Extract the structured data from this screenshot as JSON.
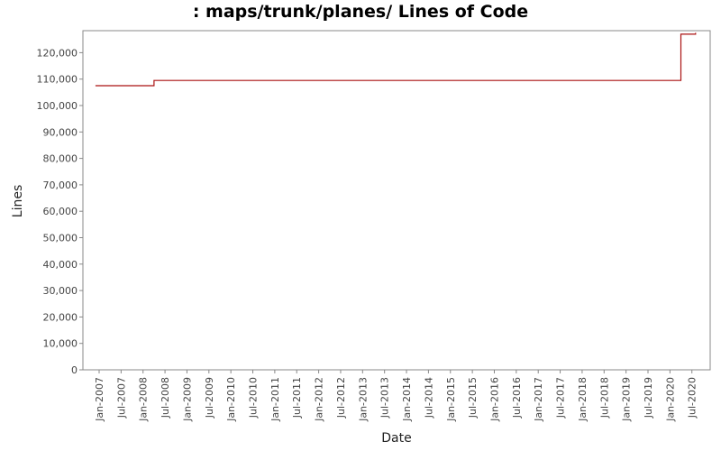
{
  "chart_data": {
    "type": "line",
    "title": ": maps/trunk/planes/ Lines of Code",
    "xlabel": "Date",
    "ylabel": "Lines",
    "ylim": [
      0,
      128000
    ],
    "y_ticks": [
      0,
      10000,
      20000,
      30000,
      40000,
      50000,
      60000,
      70000,
      80000,
      90000,
      100000,
      110000,
      120000
    ],
    "y_tick_labels": [
      "0",
      "10,000",
      "20,000",
      "30,000",
      "40,000",
      "50,000",
      "60,000",
      "70,000",
      "80,000",
      "90,000",
      "100,000",
      "110,000",
      "120,000"
    ],
    "x_tick_labels": [
      "Jan-2007",
      "Jul-2007",
      "Jan-2008",
      "Jul-2008",
      "Jan-2009",
      "Jul-2009",
      "Jan-2010",
      "Jul-2010",
      "Jan-2011",
      "Jul-2011",
      "Jan-2012",
      "Jul-2012",
      "Jan-2013",
      "Jul-2013",
      "Jan-2014",
      "Jul-2014",
      "Jan-2015",
      "Jul-2015",
      "Jan-2016",
      "Jul-2016",
      "Jan-2017",
      "Jul-2017",
      "Jan-2018",
      "Jul-2018",
      "Jan-2019",
      "Jul-2019",
      "Jan-2020",
      "Jul-2020"
    ],
    "step": true,
    "grid": false,
    "series": [
      {
        "color": "#aa1111",
        "points": [
          {
            "x": "2006-12",
            "y": 107500
          },
          {
            "x": "2008-04",
            "y": 107500
          },
          {
            "x": "2008-04",
            "y": 109500
          },
          {
            "x": "2020-04",
            "y": 109500
          },
          {
            "x": "2020-04",
            "y": 127000
          },
          {
            "x": "2020-08",
            "y": 127000
          },
          {
            "x": "2020-08",
            "y": 127500
          }
        ]
      }
    ]
  }
}
